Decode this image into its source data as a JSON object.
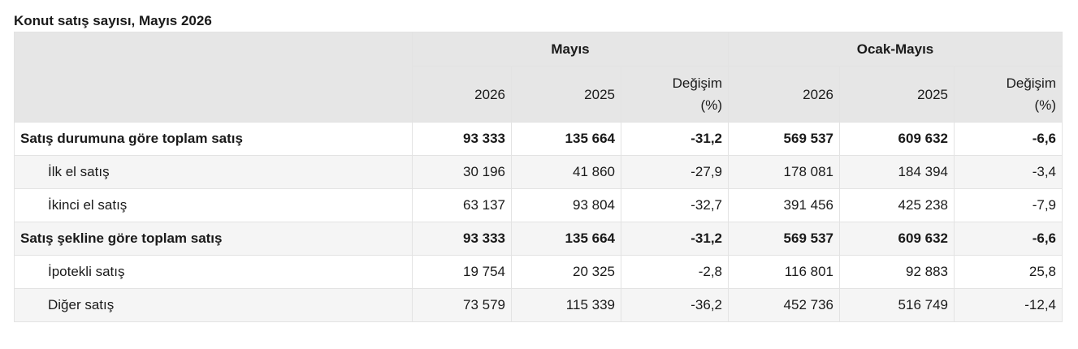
{
  "title": "Konut satış sayısı, Mayıs 2026",
  "groups": [
    "Mayıs",
    "Ocak-Mayıs"
  ],
  "subheaders": [
    "2026",
    "2025",
    "Değişim (%)",
    "2026",
    "2025",
    "Değişim (%)"
  ],
  "change_label_line1": "Değişim",
  "change_label_line2": "(%)",
  "rows": [
    {
      "label": "Satış durumuna göre toplam satış",
      "values": [
        "93 333",
        "135 664",
        "-31,2",
        "569 537",
        "609 632",
        "-6,6"
      ]
    },
    {
      "label": "İlk el satış",
      "values": [
        "30 196",
        "41 860",
        "-27,9",
        "178 081",
        "184 394",
        "-3,4"
      ]
    },
    {
      "label": "İkinci el satış",
      "values": [
        "63 137",
        "93 804",
        "-32,7",
        "391 456",
        "425 238",
        "-7,9"
      ]
    },
    {
      "label": "Satış şekline göre toplam satış",
      "values": [
        "93 333",
        "135 664",
        "-31,2",
        "569 537",
        "609 632",
        "-6,6"
      ]
    },
    {
      "label": "İpotekli satış",
      "values": [
        "19 754",
        "20 325",
        "-2,8",
        "116 801",
        "92 883",
        "25,8"
      ]
    },
    {
      "label": "Diğer satış",
      "values": [
        "73 579",
        "115 339",
        "-36,2",
        "452 736",
        "516 749",
        "-12,4"
      ]
    }
  ]
}
